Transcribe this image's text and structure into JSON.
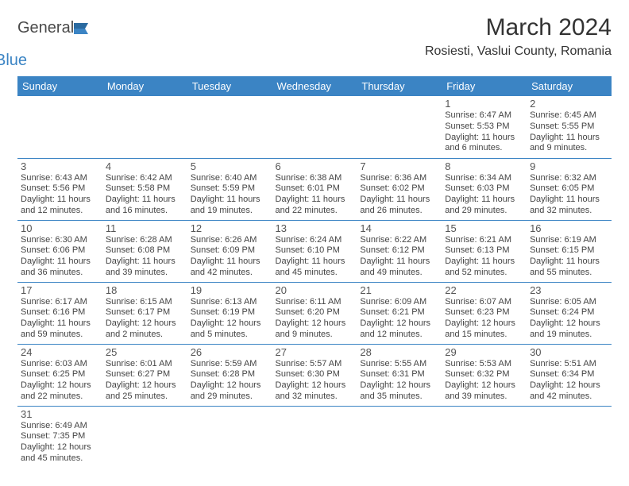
{
  "logo": {
    "part1": "General",
    "part2": "Blue"
  },
  "title": "March 2024",
  "location": "Rosiesti, Vaslui County, Romania",
  "colors": {
    "header_bg": "#3b84c4",
    "header_text": "#ffffff",
    "border": "#3b84c4",
    "text": "#444444",
    "title_color": "#333333"
  },
  "daynames": [
    "Sunday",
    "Monday",
    "Tuesday",
    "Wednesday",
    "Thursday",
    "Friday",
    "Saturday"
  ],
  "weeks": [
    [
      null,
      null,
      null,
      null,
      null,
      {
        "n": "1",
        "sr": "Sunrise: 6:47 AM",
        "ss": "Sunset: 5:53 PM",
        "dl": "Daylight: 11 hours and 6 minutes."
      },
      {
        "n": "2",
        "sr": "Sunrise: 6:45 AM",
        "ss": "Sunset: 5:55 PM",
        "dl": "Daylight: 11 hours and 9 minutes."
      }
    ],
    [
      {
        "n": "3",
        "sr": "Sunrise: 6:43 AM",
        "ss": "Sunset: 5:56 PM",
        "dl": "Daylight: 11 hours and 12 minutes."
      },
      {
        "n": "4",
        "sr": "Sunrise: 6:42 AM",
        "ss": "Sunset: 5:58 PM",
        "dl": "Daylight: 11 hours and 16 minutes."
      },
      {
        "n": "5",
        "sr": "Sunrise: 6:40 AM",
        "ss": "Sunset: 5:59 PM",
        "dl": "Daylight: 11 hours and 19 minutes."
      },
      {
        "n": "6",
        "sr": "Sunrise: 6:38 AM",
        "ss": "Sunset: 6:01 PM",
        "dl": "Daylight: 11 hours and 22 minutes."
      },
      {
        "n": "7",
        "sr": "Sunrise: 6:36 AM",
        "ss": "Sunset: 6:02 PM",
        "dl": "Daylight: 11 hours and 26 minutes."
      },
      {
        "n": "8",
        "sr": "Sunrise: 6:34 AM",
        "ss": "Sunset: 6:03 PM",
        "dl": "Daylight: 11 hours and 29 minutes."
      },
      {
        "n": "9",
        "sr": "Sunrise: 6:32 AM",
        "ss": "Sunset: 6:05 PM",
        "dl": "Daylight: 11 hours and 32 minutes."
      }
    ],
    [
      {
        "n": "10",
        "sr": "Sunrise: 6:30 AM",
        "ss": "Sunset: 6:06 PM",
        "dl": "Daylight: 11 hours and 36 minutes."
      },
      {
        "n": "11",
        "sr": "Sunrise: 6:28 AM",
        "ss": "Sunset: 6:08 PM",
        "dl": "Daylight: 11 hours and 39 minutes."
      },
      {
        "n": "12",
        "sr": "Sunrise: 6:26 AM",
        "ss": "Sunset: 6:09 PM",
        "dl": "Daylight: 11 hours and 42 minutes."
      },
      {
        "n": "13",
        "sr": "Sunrise: 6:24 AM",
        "ss": "Sunset: 6:10 PM",
        "dl": "Daylight: 11 hours and 45 minutes."
      },
      {
        "n": "14",
        "sr": "Sunrise: 6:22 AM",
        "ss": "Sunset: 6:12 PM",
        "dl": "Daylight: 11 hours and 49 minutes."
      },
      {
        "n": "15",
        "sr": "Sunrise: 6:21 AM",
        "ss": "Sunset: 6:13 PM",
        "dl": "Daylight: 11 hours and 52 minutes."
      },
      {
        "n": "16",
        "sr": "Sunrise: 6:19 AM",
        "ss": "Sunset: 6:15 PM",
        "dl": "Daylight: 11 hours and 55 minutes."
      }
    ],
    [
      {
        "n": "17",
        "sr": "Sunrise: 6:17 AM",
        "ss": "Sunset: 6:16 PM",
        "dl": "Daylight: 11 hours and 59 minutes."
      },
      {
        "n": "18",
        "sr": "Sunrise: 6:15 AM",
        "ss": "Sunset: 6:17 PM",
        "dl": "Daylight: 12 hours and 2 minutes."
      },
      {
        "n": "19",
        "sr": "Sunrise: 6:13 AM",
        "ss": "Sunset: 6:19 PM",
        "dl": "Daylight: 12 hours and 5 minutes."
      },
      {
        "n": "20",
        "sr": "Sunrise: 6:11 AM",
        "ss": "Sunset: 6:20 PM",
        "dl": "Daylight: 12 hours and 9 minutes."
      },
      {
        "n": "21",
        "sr": "Sunrise: 6:09 AM",
        "ss": "Sunset: 6:21 PM",
        "dl": "Daylight: 12 hours and 12 minutes."
      },
      {
        "n": "22",
        "sr": "Sunrise: 6:07 AM",
        "ss": "Sunset: 6:23 PM",
        "dl": "Daylight: 12 hours and 15 minutes."
      },
      {
        "n": "23",
        "sr": "Sunrise: 6:05 AM",
        "ss": "Sunset: 6:24 PM",
        "dl": "Daylight: 12 hours and 19 minutes."
      }
    ],
    [
      {
        "n": "24",
        "sr": "Sunrise: 6:03 AM",
        "ss": "Sunset: 6:25 PM",
        "dl": "Daylight: 12 hours and 22 minutes."
      },
      {
        "n": "25",
        "sr": "Sunrise: 6:01 AM",
        "ss": "Sunset: 6:27 PM",
        "dl": "Daylight: 12 hours and 25 minutes."
      },
      {
        "n": "26",
        "sr": "Sunrise: 5:59 AM",
        "ss": "Sunset: 6:28 PM",
        "dl": "Daylight: 12 hours and 29 minutes."
      },
      {
        "n": "27",
        "sr": "Sunrise: 5:57 AM",
        "ss": "Sunset: 6:30 PM",
        "dl": "Daylight: 12 hours and 32 minutes."
      },
      {
        "n": "28",
        "sr": "Sunrise: 5:55 AM",
        "ss": "Sunset: 6:31 PM",
        "dl": "Daylight: 12 hours and 35 minutes."
      },
      {
        "n": "29",
        "sr": "Sunrise: 5:53 AM",
        "ss": "Sunset: 6:32 PM",
        "dl": "Daylight: 12 hours and 39 minutes."
      },
      {
        "n": "30",
        "sr": "Sunrise: 5:51 AM",
        "ss": "Sunset: 6:34 PM",
        "dl": "Daylight: 12 hours and 42 minutes."
      }
    ],
    [
      {
        "n": "31",
        "sr": "Sunrise: 6:49 AM",
        "ss": "Sunset: 7:35 PM",
        "dl": "Daylight: 12 hours and 45 minutes."
      },
      null,
      null,
      null,
      null,
      null,
      null
    ]
  ]
}
